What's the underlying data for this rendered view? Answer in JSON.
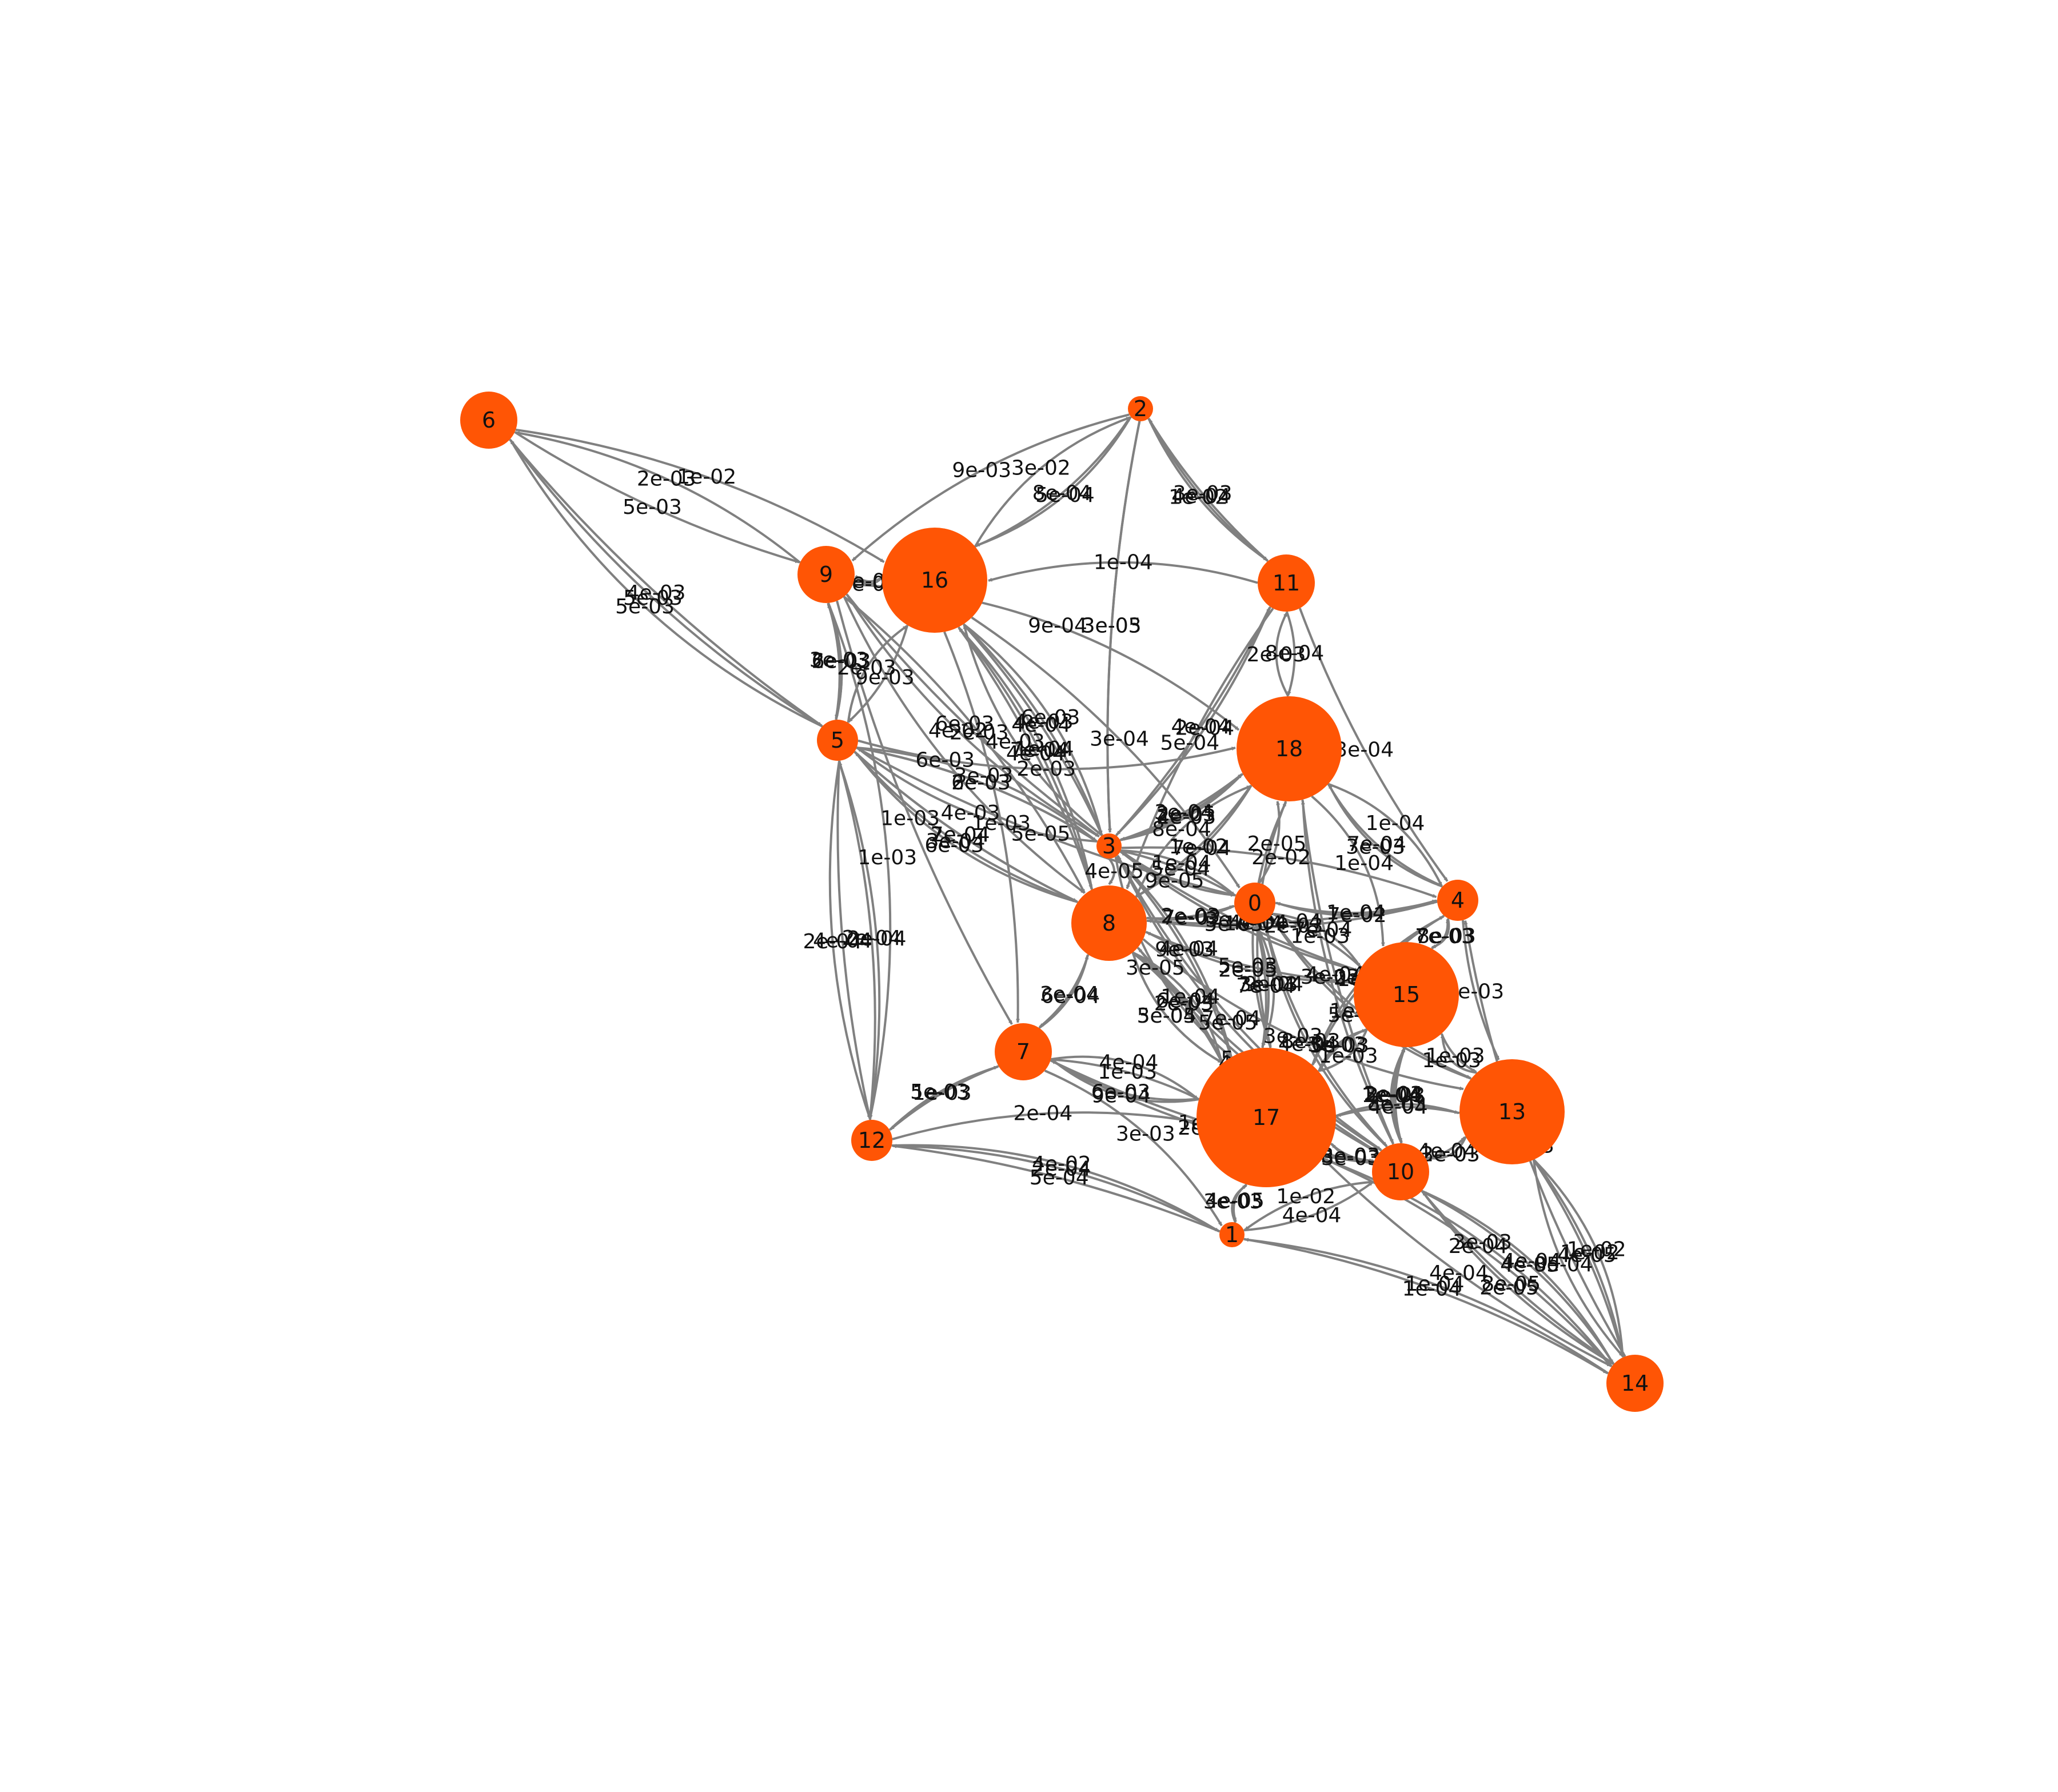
{
  "colors": {
    "node": "#ff5505",
    "edge": "#808080",
    "text": "#111111",
    "background": "#ffffff"
  },
  "graph": {
    "directed": true,
    "nodes": [
      {
        "id": "0",
        "label": "0",
        "size": "small"
      },
      {
        "id": "1",
        "label": "1",
        "size": "tiny"
      },
      {
        "id": "2",
        "label": "2",
        "size": "tiny"
      },
      {
        "id": "3",
        "label": "3",
        "size": "tiny"
      },
      {
        "id": "4",
        "label": "4",
        "size": "small"
      },
      {
        "id": "5",
        "label": "5",
        "size": "small"
      },
      {
        "id": "6",
        "label": "6",
        "size": "medium"
      },
      {
        "id": "7",
        "label": "7",
        "size": "medium"
      },
      {
        "id": "8",
        "label": "8",
        "size": "large"
      },
      {
        "id": "9",
        "label": "9",
        "size": "medium"
      },
      {
        "id": "10",
        "label": "10",
        "size": "medium"
      },
      {
        "id": "11",
        "label": "11",
        "size": "medium"
      },
      {
        "id": "12",
        "label": "12",
        "size": "small"
      },
      {
        "id": "13",
        "label": "13",
        "size": "x-large"
      },
      {
        "id": "14",
        "label": "14",
        "size": "medium"
      },
      {
        "id": "15",
        "label": "15",
        "size": "x-large"
      },
      {
        "id": "16",
        "label": "16",
        "size": "x-large"
      },
      {
        "id": "17",
        "label": "17",
        "size": "xx-large"
      },
      {
        "id": "18",
        "label": "18",
        "size": "x-large"
      }
    ],
    "edges": [
      {
        "source": "6",
        "target": "9",
        "label": "5e-03"
      },
      {
        "source": "6",
        "target": "16",
        "label": "1e-02"
      },
      {
        "source": "9",
        "target": "6",
        "label": "2e-03"
      },
      {
        "source": "5",
        "target": "6",
        "label": "5e-03"
      },
      {
        "source": "6",
        "target": "5",
        "label": "4e-03"
      },
      {
        "source": "5",
        "target": "6",
        "label": "5e-03"
      },
      {
        "source": "16",
        "target": "2",
        "label": "8e-04"
      },
      {
        "source": "2",
        "target": "16",
        "label": "5e-04"
      },
      {
        "source": "2",
        "target": "11",
        "label": "3e-03"
      },
      {
        "source": "16",
        "target": "9",
        "label": "3e-02"
      },
      {
        "source": "2",
        "target": "9",
        "label": "9e-03"
      },
      {
        "source": "16",
        "target": "2",
        "label": "3e-02"
      },
      {
        "source": "2",
        "target": "3",
        "label": "3e-05"
      },
      {
        "source": "11",
        "target": "2",
        "label": "4e-04"
      },
      {
        "source": "2",
        "target": "11",
        "label": "1e-02"
      },
      {
        "source": "16",
        "target": "9",
        "label": "3e-03"
      },
      {
        "source": "2",
        "target": "3",
        "label": "3e-03"
      },
      {
        "source": "9",
        "target": "5",
        "label": "3e-03"
      },
      {
        "source": "11",
        "target": "16",
        "label": "1e-04"
      },
      {
        "source": "18",
        "target": "11",
        "label": "2e-03"
      },
      {
        "source": "3",
        "target": "11",
        "label": "4e-04"
      },
      {
        "source": "16",
        "target": "5",
        "label": "9e-03"
      },
      {
        "source": "9",
        "target": "3",
        "label": "4e-02"
      },
      {
        "source": "5",
        "target": "16",
        "label": "2e-03"
      },
      {
        "source": "9",
        "target": "3",
        "label": "6e-03"
      },
      {
        "source": "11",
        "target": "18",
        "label": "8e-04"
      },
      {
        "source": "5",
        "target": "9",
        "label": "6e-03"
      },
      {
        "source": "16",
        "target": "3",
        "label": "6e-03"
      },
      {
        "source": "3",
        "target": "16",
        "label": "4e-04"
      },
      {
        "source": "11",
        "target": "3",
        "label": "2e-04"
      },
      {
        "source": "5",
        "target": "9",
        "label": "2e-03"
      },
      {
        "source": "3",
        "target": "16",
        "label": "4e-03"
      },
      {
        "source": "8",
        "target": "16",
        "label": "4e-04"
      },
      {
        "source": "16",
        "target": "8",
        "label": "7e-04"
      },
      {
        "source": "8",
        "target": "16",
        "label": "1e-04"
      },
      {
        "source": "3",
        "target": "5",
        "label": "4e-03"
      },
      {
        "source": "11",
        "target": "8",
        "label": "5e-04"
      },
      {
        "source": "5",
        "target": "3",
        "label": "6e-03"
      },
      {
        "source": "5",
        "target": "18",
        "label": "2e-03"
      },
      {
        "source": "9",
        "target": "18",
        "label": "9e-04"
      },
      {
        "source": "5",
        "target": "8",
        "label": "7e-04"
      },
      {
        "source": "16",
        "target": "3",
        "label": "4e-03"
      },
      {
        "source": "3",
        "target": "18",
        "label": "4e-03"
      },
      {
        "source": "5",
        "target": "3",
        "label": "3e-03"
      },
      {
        "source": "8",
        "target": "18",
        "label": "1e-02"
      },
      {
        "source": "18",
        "target": "8",
        "label": "7e-04"
      },
      {
        "source": "9",
        "target": "8",
        "label": "6e-03"
      },
      {
        "source": "8",
        "target": "5",
        "label": "6e-03"
      },
      {
        "source": "5",
        "target": "0",
        "label": "5e-05"
      },
      {
        "source": "16",
        "target": "0",
        "label": "3e-04"
      },
      {
        "source": "3",
        "target": "0",
        "label": "9e-05"
      },
      {
        "source": "18",
        "target": "4",
        "label": "1e-04"
      },
      {
        "source": "11",
        "target": "4",
        "label": "3e-04"
      },
      {
        "source": "5",
        "target": "3",
        "label": "2e-03"
      },
      {
        "source": "3",
        "target": "18",
        "label": "2e-03"
      },
      {
        "source": "8",
        "target": "18",
        "label": "8e-04"
      },
      {
        "source": "3",
        "target": "18",
        "label": "3e-04"
      },
      {
        "source": "18",
        "target": "3",
        "label": "2e-05"
      },
      {
        "source": "0",
        "target": "18",
        "label": "2e-05"
      },
      {
        "source": "18",
        "target": "15",
        "label": "1e-04"
      },
      {
        "source": "5",
        "target": "8",
        "label": "2e-04"
      },
      {
        "source": "9",
        "target": "8",
        "label": "2e-03"
      },
      {
        "source": "5",
        "target": "8",
        "label": "3e-04"
      },
      {
        "source": "3",
        "target": "0",
        "label": "1e-04"
      },
      {
        "source": "0",
        "target": "3",
        "label": "5e-04"
      },
      {
        "source": "3",
        "target": "4",
        "label": "2e-02"
      },
      {
        "source": "18",
        "target": "4",
        "label": "7e-04"
      },
      {
        "source": "4",
        "target": "18",
        "label": "3e-03"
      },
      {
        "source": "9",
        "target": "7",
        "label": "1e-03"
      },
      {
        "source": "5",
        "target": "12",
        "label": "2e-04"
      },
      {
        "source": "12",
        "target": "5",
        "label": "2e-04"
      },
      {
        "source": "3",
        "target": "8",
        "label": "4e-05"
      },
      {
        "source": "8",
        "target": "0",
        "label": "2e-03"
      },
      {
        "source": "0",
        "target": "8",
        "label": "7e-02"
      },
      {
        "source": "0",
        "target": "4",
        "label": "1e-04"
      },
      {
        "source": "4",
        "target": "0",
        "label": "7e-02"
      },
      {
        "source": "5",
        "target": "12",
        "label": "4e-04"
      },
      {
        "source": "16",
        "target": "7",
        "label": "1e-03"
      },
      {
        "source": "5",
        "target": "12",
        "label": "2e-04"
      },
      {
        "source": "9",
        "target": "12",
        "label": "1e-03"
      },
      {
        "source": "8",
        "target": "15",
        "label": "5e-03"
      },
      {
        "source": "15",
        "target": "8",
        "label": "2e-05"
      },
      {
        "source": "8",
        "target": "17",
        "label": "3e-04"
      },
      {
        "source": "0",
        "target": "15",
        "label": "7e-04"
      },
      {
        "source": "15",
        "target": "0",
        "label": "1e-03"
      },
      {
        "source": "0",
        "target": "17",
        "label": "3e-03"
      },
      {
        "source": "15",
        "target": "4",
        "label": "7e-03"
      },
      {
        "source": "4",
        "target": "15",
        "label": "8e-03"
      },
      {
        "source": "4",
        "target": "13",
        "label": "6e-03"
      },
      {
        "source": "8",
        "target": "7",
        "label": "3e-04"
      },
      {
        "source": "7",
        "target": "8",
        "label": "6e-04"
      },
      {
        "source": "8",
        "target": "17",
        "label": "1e-04"
      },
      {
        "source": "17",
        "target": "8",
        "label": "2e-03"
      },
      {
        "source": "3",
        "target": "17",
        "label": "9e-03"
      },
      {
        "source": "17",
        "target": "3",
        "label": "4e-04"
      },
      {
        "source": "0",
        "target": "17",
        "label": "9e-04"
      },
      {
        "source": "17",
        "target": "0",
        "label": "7e-04"
      },
      {
        "source": "15",
        "target": "17",
        "label": "1e-03"
      },
      {
        "source": "8",
        "target": "13",
        "label": "3e-03"
      },
      {
        "source": "13",
        "target": "15",
        "label": "1e-03"
      },
      {
        "source": "15",
        "target": "13",
        "label": "1e-03"
      },
      {
        "source": "12",
        "target": "7",
        "label": "5e-03"
      },
      {
        "source": "7",
        "target": "17",
        "label": "6e-03"
      },
      {
        "source": "17",
        "target": "7",
        "label": "9e-04"
      },
      {
        "source": "7",
        "target": "12",
        "label": "1e-03"
      },
      {
        "source": "8",
        "target": "17",
        "label": "6e-04"
      },
      {
        "source": "8",
        "target": "17",
        "label": "5e-05"
      },
      {
        "source": "7",
        "target": "17",
        "label": "4e-04"
      },
      {
        "source": "17",
        "target": "10",
        "label": "8e-03"
      },
      {
        "source": "10",
        "target": "15",
        "label": "2e-03"
      },
      {
        "source": "15",
        "target": "10",
        "label": "3e-03"
      },
      {
        "source": "13",
        "target": "10",
        "label": "3e-03"
      },
      {
        "source": "10",
        "target": "13",
        "label": "4e-04"
      },
      {
        "source": "13",
        "target": "14",
        "label": "1e-02"
      },
      {
        "source": "13",
        "target": "14",
        "label": "8e-04"
      },
      {
        "source": "7",
        "target": "1",
        "label": "3e-03"
      },
      {
        "source": "17",
        "target": "7",
        "label": "1e-03"
      },
      {
        "source": "12",
        "target": "17",
        "label": "2e-04"
      },
      {
        "source": "17",
        "target": "1",
        "label": "4e-05"
      },
      {
        "source": "1",
        "target": "17",
        "label": "3e-03"
      },
      {
        "source": "17",
        "target": "10",
        "label": "3e-03"
      },
      {
        "source": "10",
        "target": "17",
        "label": "3e-03"
      },
      {
        "source": "10",
        "target": "1",
        "label": "1e-02"
      },
      {
        "source": "13",
        "target": "10",
        "label": "2e-03"
      },
      {
        "source": "10",
        "target": "14",
        "label": "8e-05"
      },
      {
        "source": "14",
        "target": "4",
        "label": "4e-03"
      },
      {
        "source": "1",
        "target": "12",
        "label": "2e-04"
      },
      {
        "source": "12",
        "target": "1",
        "label": "4e-02"
      },
      {
        "source": "1",
        "target": "12",
        "label": "5e-04"
      },
      {
        "source": "17",
        "target": "14",
        "label": "2e-04"
      },
      {
        "source": "14",
        "target": "10",
        "label": "4e-05"
      },
      {
        "source": "10",
        "target": "14",
        "label": "4e-04"
      },
      {
        "source": "14",
        "target": "13",
        "label": "4e-05"
      },
      {
        "source": "1",
        "target": "14",
        "label": "1e-04"
      },
      {
        "source": "14",
        "target": "17",
        "label": "3e-03"
      },
      {
        "source": "13",
        "target": "14",
        "label": "1e-02"
      },
      {
        "source": "17",
        "target": "14",
        "label": "4e-04"
      },
      {
        "source": "14",
        "target": "10",
        "label": "2e-05"
      },
      {
        "source": "14",
        "target": "1",
        "label": "1e-04"
      },
      {
        "source": "17",
        "target": "3",
        "label": "3e-05"
      },
      {
        "source": "8",
        "target": "10",
        "label": "5e-03"
      },
      {
        "source": "10",
        "target": "8",
        "label": "4e-04"
      },
      {
        "source": "0",
        "target": "10",
        "label": "8e-03"
      },
      {
        "source": "10",
        "target": "0",
        "label": "4e-04"
      },
      {
        "source": "15",
        "target": "17",
        "label": "5e-03"
      },
      {
        "source": "17",
        "target": "15",
        "label": "3e-03"
      },
      {
        "source": "15",
        "target": "10",
        "label": "2e-04"
      },
      {
        "source": "10",
        "target": "15",
        "label": "1e-04"
      },
      {
        "source": "13",
        "target": "17",
        "label": "4e-04"
      },
      {
        "source": "17",
        "target": "13",
        "label": "8e-03"
      },
      {
        "source": "4",
        "target": "17",
        "label": "1e-03"
      },
      {
        "source": "17",
        "target": "4",
        "label": "2e-03"
      },
      {
        "source": "3",
        "target": "15",
        "label": "3e-04"
      },
      {
        "source": "15",
        "target": "3",
        "label": "5e-05"
      },
      {
        "source": "18",
        "target": "17",
        "label": "4e-04"
      },
      {
        "source": "17",
        "target": "18",
        "label": "1e-04"
      },
      {
        "source": "8",
        "target": "4",
        "label": "5e-04"
      },
      {
        "source": "4",
        "target": "8",
        "label": "2e-03"
      },
      {
        "source": "0",
        "target": "13",
        "label": "1e-03"
      },
      {
        "source": "13",
        "target": "0",
        "label": "5e-03"
      },
      {
        "source": "18",
        "target": "10",
        "label": "4e-04"
      },
      {
        "source": "10",
        "target": "18",
        "label": "3e-03"
      },
      {
        "source": "3",
        "target": "10",
        "label": "7e-04"
      },
      {
        "source": "10",
        "target": "3",
        "label": "5e-05"
      },
      {
        "source": "7",
        "target": "10",
        "label": "1e-02"
      },
      {
        "source": "10",
        "target": "7",
        "label": "2e-04"
      },
      {
        "source": "1",
        "target": "10",
        "label": "4e-04"
      }
    ]
  }
}
